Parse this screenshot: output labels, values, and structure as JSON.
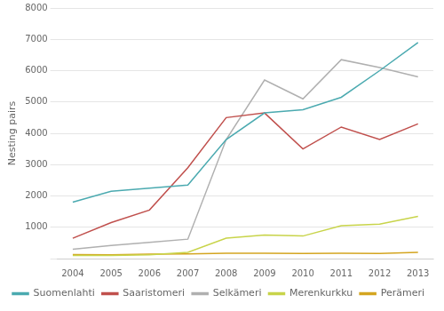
{
  "chart_data": {
    "type": "line",
    "ylabel": "Nesting pairs",
    "x": [
      2004,
      2005,
      2006,
      2007,
      2008,
      2009,
      2010,
      2011,
      2012,
      2013
    ],
    "series": [
      {
        "name": "Suomenlahti",
        "color": "#4BAAB0",
        "values": [
          1800,
          2150,
          2250,
          2350,
          3800,
          4650,
          4750,
          5150,
          6000,
          6900
        ]
      },
      {
        "name": "Saaristomeri",
        "color": "#C0504D",
        "values": [
          650,
          1150,
          1550,
          2900,
          4500,
          4650,
          3500,
          4200,
          3800,
          4300
        ]
      },
      {
        "name": "Selkämeri",
        "color": "#B0B0B0",
        "values": [
          300,
          420,
          520,
          620,
          3800,
          5700,
          5100,
          6350,
          6100,
          5800
        ]
      },
      {
        "name": "Merenkurkku",
        "color": "#C8D44A",
        "values": [
          100,
          100,
          120,
          200,
          650,
          750,
          720,
          1050,
          1100,
          1350
        ]
      },
      {
        "name": "Perämeri",
        "color": "#D4A520",
        "values": [
          130,
          120,
          140,
          150,
          170,
          170,
          165,
          170,
          165,
          200
        ]
      }
    ],
    "xlim": [
      2003.6,
      2013.4
    ],
    "xticks": [
      2004,
      2005,
      2006,
      2007,
      2008,
      2009,
      2010,
      2011,
      2012,
      2013
    ],
    "ylim": [
      0,
      8000
    ],
    "yticks": [
      {
        "value": 0,
        "label": null
      },
      1000,
      2000,
      3000,
      4000,
      5000,
      6000,
      7000,
      8000
    ],
    "grid": "y",
    "legend": "bottom"
  }
}
